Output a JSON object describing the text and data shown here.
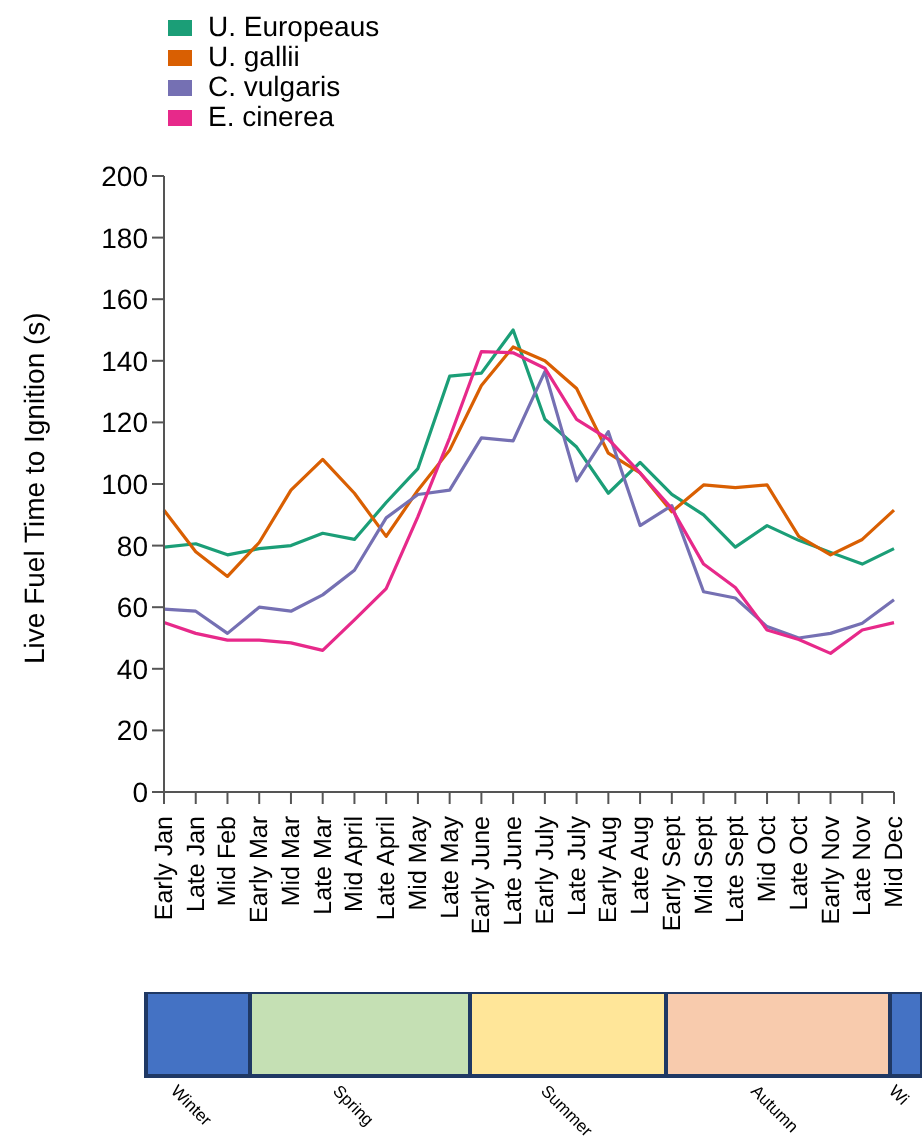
{
  "chart_data": {
    "type": "line",
    "ylabel": "Live Fuel Time to Ignition (s)",
    "categories": [
      "Early Jan",
      "Late Jan",
      "Mid Feb",
      "Early Mar",
      "Mid Mar",
      "Late Mar",
      "Mid April",
      "Late April",
      "Mid May",
      "Late May",
      "Early June",
      "Late June",
      "Early July",
      "Late July",
      "Early Aug",
      "Late Aug",
      "Early Sept",
      "Mid Sept",
      "Late Sept",
      "Mid Oct",
      "Late Oct",
      "Early Nov",
      "Late Nov",
      "Mid Dec"
    ],
    "series": [
      {
        "name": "U. Europeaus",
        "color": "#1b9e77",
        "values": [
          79.5,
          80.6,
          77,
          79,
          80,
          84,
          82,
          94,
          105,
          135,
          136,
          150,
          121,
          112,
          97,
          107,
          96.6,
          90,
          79.5,
          86.5,
          81.7,
          77.8,
          74,
          79
        ]
      },
      {
        "name": "U. gallii",
        "color": "#d95f02",
        "values": [
          91.5,
          78,
          70,
          81,
          98,
          108,
          97,
          83,
          98,
          111,
          132,
          144.5,
          140,
          131,
          110,
          103.6,
          91,
          99.7,
          98.8,
          99.7,
          83,
          77,
          82,
          91.5
        ]
      },
      {
        "name": "C. vulgaris",
        "color": "#7570b3",
        "values": [
          59.4,
          58.7,
          51.5,
          60,
          58.7,
          64,
          72,
          89,
          96.6,
          98,
          115,
          114,
          136.5,
          101,
          117,
          86.5,
          93,
          65,
          63,
          53.7,
          50,
          51.5,
          54.8,
          62.4
        ]
      },
      {
        "name": "E. cinerea",
        "color": "#e7298a",
        "values": [
          55,
          51.5,
          49.3,
          49.3,
          48.4,
          46,
          55.9,
          66,
          89.4,
          115,
          143,
          142.6,
          137.6,
          121,
          114.6,
          103.6,
          92,
          74,
          66.4,
          52.6,
          49.5,
          45,
          52.6,
          55
        ]
      }
    ],
    "ylim": [
      0,
      200
    ],
    "yticks": [
      0,
      20,
      40,
      60,
      80,
      100,
      120,
      140,
      160,
      180,
      200
    ],
    "grid": false,
    "legend": "top left",
    "marker": "none",
    "line_style": "solid",
    "annotations": [
      "Winter",
      "Spring",
      "Summer",
      "Autumn",
      "Wi"
    ]
  }
}
